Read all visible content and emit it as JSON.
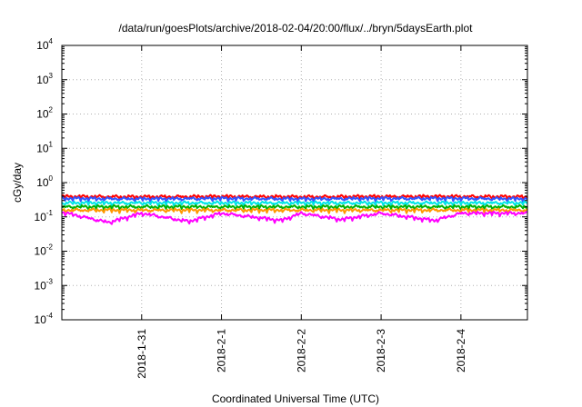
{
  "chart_data": {
    "type": "line",
    "title": "/data/run/goesPlots/archive/2018-02-04/20:00/flux/../bryn/5daysEarth.plot",
    "xlabel": "Coordinated Universal Time (UTC)",
    "ylabel": "cGy/day",
    "yscale": "log",
    "ylim": [
      0.0001,
      10000
    ],
    "y_ticks": [
      {
        "base": "10",
        "exp": "-4"
      },
      {
        "base": "10",
        "exp": "-3"
      },
      {
        "base": "10",
        "exp": "-2"
      },
      {
        "base": "10",
        "exp": "-1"
      },
      {
        "base": "10",
        "exp": "0"
      },
      {
        "base": "10",
        "exp": "1"
      },
      {
        "base": "10",
        "exp": "2"
      },
      {
        "base": "10",
        "exp": "3"
      },
      {
        "base": "10",
        "exp": "4"
      }
    ],
    "xlim": [
      "2018-01-30 00:00",
      "2018-02-04 20:00"
    ],
    "x_ticks": [
      "2018-1-31",
      "2018-2-1",
      "2018-2-2",
      "2018-2-3",
      "2018-2-4"
    ],
    "grid": true,
    "series": [
      {
        "color": "#ff0000",
        "points": [
          [
            "2018-01-30 00:00",
            0.4
          ],
          [
            "2018-01-31 00:00",
            0.39
          ],
          [
            "2018-02-01 00:00",
            0.4
          ],
          [
            "2018-02-02 00:00",
            0.39
          ],
          [
            "2018-02-03 00:00",
            0.4
          ],
          [
            "2018-02-04 00:00",
            0.4
          ],
          [
            "2018-02-04 20:00",
            0.39
          ]
        ]
      },
      {
        "color": "#3355ff",
        "points": [
          [
            "2018-01-30 00:00",
            0.35
          ],
          [
            "2018-01-31 00:00",
            0.34
          ],
          [
            "2018-02-01 00:00",
            0.35
          ],
          [
            "2018-02-02 00:00",
            0.34
          ],
          [
            "2018-02-03 00:00",
            0.35
          ],
          [
            "2018-02-04 00:00",
            0.35
          ],
          [
            "2018-02-04 20:00",
            0.34
          ]
        ]
      },
      {
        "color": "#00e5e5",
        "points": [
          [
            "2018-01-30 00:00",
            0.26
          ],
          [
            "2018-01-31 00:00",
            0.26
          ],
          [
            "2018-02-01 00:00",
            0.26
          ],
          [
            "2018-02-02 00:00",
            0.26
          ],
          [
            "2018-02-03 00:00",
            0.26
          ],
          [
            "2018-02-04 00:00",
            0.26
          ],
          [
            "2018-02-04 20:00",
            0.26
          ]
        ]
      },
      {
        "color": "#00b000",
        "points": [
          [
            "2018-01-30 00:00",
            0.2
          ],
          [
            "2018-01-31 00:00",
            0.2
          ],
          [
            "2018-02-01 00:00",
            0.2
          ],
          [
            "2018-02-02 00:00",
            0.2
          ],
          [
            "2018-02-03 00:00",
            0.2
          ],
          [
            "2018-02-04 00:00",
            0.2
          ],
          [
            "2018-02-04 20:00",
            0.2
          ]
        ]
      },
      {
        "color": "#ff9900",
        "points": [
          [
            "2018-01-30 00:00",
            0.16
          ],
          [
            "2018-01-31 00:00",
            0.16
          ],
          [
            "2018-02-01 00:00",
            0.16
          ],
          [
            "2018-02-02 00:00",
            0.16
          ],
          [
            "2018-02-03 00:00",
            0.16
          ],
          [
            "2018-02-04 00:00",
            0.16
          ],
          [
            "2018-02-04 20:00",
            0.16
          ]
        ]
      },
      {
        "color": "#ff00ff",
        "points": [
          [
            "2018-01-30 00:00",
            0.14
          ],
          [
            "2018-01-30 14:00",
            0.07
          ],
          [
            "2018-01-31 00:00",
            0.13
          ],
          [
            "2018-01-31 14:00",
            0.075
          ],
          [
            "2018-02-01 00:00",
            0.13
          ],
          [
            "2018-02-01 18:00",
            0.08
          ],
          [
            "2018-02-02 00:00",
            0.13
          ],
          [
            "2018-02-02 12:00",
            0.085
          ],
          [
            "2018-02-03 00:00",
            0.13
          ],
          [
            "2018-02-03 16:00",
            0.08
          ],
          [
            "2018-02-04 00:00",
            0.13
          ],
          [
            "2018-02-04 20:00",
            0.13
          ]
        ]
      }
    ]
  }
}
